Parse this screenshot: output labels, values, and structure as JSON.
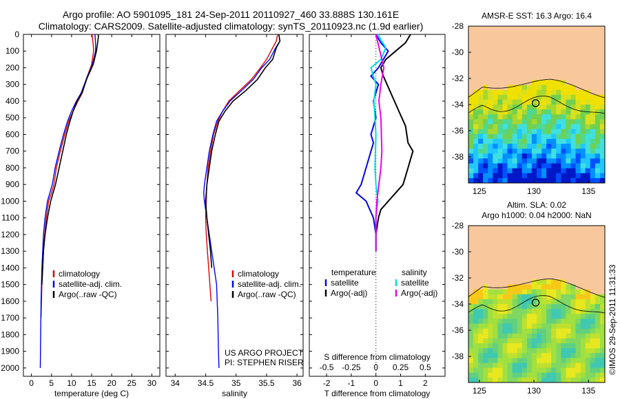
{
  "header": {
    "line1": "Argo profile: AO 5901095_181 24-Sep-2011 20110927_460 33.888S 130.161E",
    "line2": "Climatology: CARS2009. Satellite-adjusted climatology: synTS_20110923.nc (1.9d earlier)"
  },
  "colors": {
    "climatology": "#dd0000",
    "satellite": "#0000ee",
    "argo": "#000000",
    "salinity_satellite": "#00dddd",
    "salinity_argo": "#ee00ee",
    "land": "#f8c89c"
  },
  "depth_axis": {
    "min": 0,
    "max": 2050,
    "inverted": true,
    "ticks": [
      0,
      100,
      200,
      300,
      400,
      500,
      600,
      700,
      800,
      900,
      1000,
      1100,
      1200,
      1300,
      1400,
      1500,
      1600,
      1700,
      1800,
      1900,
      2000
    ]
  },
  "chart_data": [
    {
      "id": "temperature",
      "type": "line",
      "xlabel": "temperature (deg C)",
      "xlim": [
        -2,
        32
      ],
      "xticks": [
        0,
        5,
        10,
        15,
        20,
        25,
        30
      ],
      "series": [
        {
          "name": "climatology",
          "key": "climatology",
          "x": [
            15.1,
            15.2,
            15.4,
            15.5,
            15.0,
            13.8,
            12.7,
            11.6,
            10.4,
            9.3,
            8.3,
            7.2,
            6.2,
            5.6,
            5.0,
            4.3,
            3.7,
            3.3,
            3.0,
            2.8,
            2.6,
            2.5,
            2.4
          ],
          "depth": [
            0,
            20,
            60,
            100,
            180,
            260,
            350,
            400,
            460,
            520,
            600,
            700,
            800,
            900,
            950,
            1000,
            1100,
            1200,
            1300,
            1400,
            1500,
            1600,
            1700
          ]
        },
        {
          "name": "satellite-adj. clim.",
          "key": "satellite",
          "x": [
            15.8,
            15.9,
            16.0,
            16.0,
            15.2,
            13.8,
            12.4,
            11.2,
            10.0,
            9.0,
            8.0,
            6.9,
            5.9,
            5.2,
            4.6,
            4.0,
            3.4,
            3.0,
            2.8,
            2.6,
            2.5,
            2.4,
            2.35,
            2.3,
            2.2
          ],
          "depth": [
            0,
            20,
            60,
            100,
            180,
            260,
            350,
            400,
            460,
            520,
            600,
            700,
            800,
            900,
            950,
            1000,
            1100,
            1200,
            1300,
            1400,
            1500,
            1600,
            1700,
            1800,
            2000
          ]
        },
        {
          "name": "Argo(..raw -QC)",
          "key": "argo",
          "x": [
            16.6,
            16.7,
            16.5,
            16.2,
            15.4,
            13.9,
            12.6,
            11.4,
            10.4,
            9.6,
            8.7,
            7.8,
            6.9,
            6.0,
            4.8,
            4.0,
            3.4,
            3.0,
            2.8,
            2.6
          ],
          "depth": [
            0,
            10,
            50,
            100,
            180,
            260,
            350,
            400,
            460,
            520,
            600,
            700,
            800,
            900,
            1000,
            1100,
            1200,
            1300,
            1400,
            1500
          ]
        }
      ],
      "legend": [
        "climatology",
        "satellite-adj. clim.",
        "Argo(..raw -QC)"
      ],
      "legend_location": "lower center"
    },
    {
      "id": "salinity",
      "type": "line",
      "xlabel": "salinity",
      "xlim": [
        33.85,
        36.1
      ],
      "xticks": [
        34,
        34.5,
        35,
        35.5,
        36
      ],
      "series": [
        {
          "name": "climatology",
          "key": "climatology",
          "x": [
            35.68,
            35.66,
            35.6,
            35.5,
            35.4,
            35.25,
            35.05,
            34.88,
            34.78,
            34.7,
            34.63,
            34.58,
            34.54,
            34.52,
            34.51,
            34.5,
            34.51,
            34.53,
            34.55,
            34.57,
            34.59
          ],
          "depth": [
            0,
            40,
            80,
            150,
            200,
            270,
            340,
            400,
            460,
            520,
            600,
            700,
            800,
            900,
            1000,
            1100,
            1200,
            1300,
            1400,
            1500,
            1600
          ]
        },
        {
          "name": "satellite-adj. clim.",
          "key": "satellite",
          "x": [
            35.7,
            35.72,
            35.65,
            35.55,
            35.42,
            35.28,
            35.08,
            34.9,
            34.78,
            34.68,
            34.62,
            34.56,
            34.52,
            34.48,
            34.47,
            34.48,
            34.52,
            34.56,
            34.6,
            34.64,
            34.68,
            34.7,
            34.71,
            34.72
          ],
          "depth": [
            0,
            40,
            80,
            150,
            200,
            270,
            340,
            400,
            460,
            520,
            600,
            700,
            800,
            900,
            950,
            1000,
            1100,
            1200,
            1300,
            1400,
            1500,
            1700,
            1900,
            2000
          ]
        },
        {
          "name": "Argo(..raw -QC)",
          "key": "argo",
          "x": [
            35.7,
            35.72,
            35.66,
            35.6,
            35.48,
            35.35,
            35.15,
            34.95,
            34.82,
            34.72,
            34.66,
            34.6,
            34.56,
            34.52,
            34.5,
            34.52,
            34.55,
            34.58,
            34.6
          ],
          "depth": [
            0,
            40,
            80,
            150,
            200,
            270,
            340,
            400,
            460,
            520,
            600,
            700,
            800,
            900,
            1000,
            1100,
            1200,
            1300,
            1400
          ]
        }
      ],
      "legend": [
        "climatology",
        "satellite-adj. clim.",
        "Argo(..raw -QC)"
      ],
      "legend_location": "lower center",
      "annotation": [
        "US ARGO PROJECT",
        "PI: STEPHEN RISER"
      ]
    },
    {
      "id": "differences",
      "type": "line",
      "xlabel": "T difference from climatology",
      "xlabel_top": "S difference from climatology",
      "xlim_T": [
        -2.7,
        2.8
      ],
      "xticks_T": [
        -2,
        -1,
        0,
        1,
        2
      ],
      "xlim_S": [
        -0.675,
        0.7
      ],
      "xticks_S": [
        -0.5,
        -0.25,
        0,
        0.25,
        0.5
      ],
      "xticklabels_S": [
        "-0.5",
        "-0.25",
        "0",
        "0.25",
        "0.5"
      ],
      "series": [
        {
          "name": "temperature satellite",
          "key": "satellite",
          "axis": "T",
          "x": [
            0.0,
            0.2,
            0.5,
            0.3,
            0.1,
            -0.2,
            0.1,
            -0.1,
            0.0,
            -0.2,
            -0.1,
            -0.2,
            -0.4,
            -0.5,
            -0.6,
            -0.8,
            -0.4,
            -0.1,
            0.0,
            0.0
          ],
          "depth": [
            0,
            50,
            100,
            150,
            200,
            250,
            300,
            400,
            500,
            600,
            650,
            700,
            800,
            850,
            900,
            950,
            1000,
            1100,
            1200,
            1300
          ]
        },
        {
          "name": "temperature Argo(-adj)",
          "key": "argo",
          "axis": "T",
          "x": [
            1.4,
            1.2,
            0.8,
            0.4,
            0.2,
            0.3,
            0.6,
            0.9,
            1.2,
            1.3,
            1.5,
            1.3,
            1.1,
            0.8,
            0.5,
            0.2,
            0.1,
            0.0,
            0.0
          ],
          "depth": [
            0,
            50,
            100,
            150,
            200,
            250,
            350,
            450,
            550,
            650,
            700,
            800,
            900,
            950,
            1000,
            1050,
            1100,
            1200,
            1300
          ]
        },
        {
          "name": "salinity satellite",
          "key": "salinity_satellite",
          "axis": "S",
          "x": [
            0.02,
            0.1,
            0.05,
            -0.05,
            0.0,
            -0.02,
            0.0,
            -0.01,
            0.0,
            0.02,
            0.0,
            0.0,
            0.0
          ],
          "depth": [
            0,
            80,
            150,
            200,
            300,
            400,
            600,
            800,
            900,
            1000,
            1100,
            1200,
            1300
          ]
        },
        {
          "name": "salinity Argo(-adj)",
          "key": "salinity_argo",
          "axis": "S",
          "x": [
            0.0,
            0.04,
            0.08,
            0.05,
            0.03,
            0.05,
            0.06,
            0.05,
            0.03,
            0.01,
            0.0,
            0.0
          ],
          "depth": [
            0,
            100,
            200,
            300,
            400,
            500,
            700,
            800,
            900,
            1000,
            1100,
            1300
          ]
        }
      ],
      "legend_left": {
        "title": "temperature",
        "items": [
          "satellite",
          "Argo(-adj)"
        ]
      },
      "legend_right": {
        "title": "salinity",
        "items": [
          "satellite",
          "Argo(-adj)"
        ]
      }
    },
    {
      "id": "map_sst",
      "type": "heatmap",
      "title": "AMSR-E SST: 16.3 Argo: 16.4",
      "xlim": [
        124,
        136.5
      ],
      "ylim": [
        -40,
        -28
      ],
      "xticks": [
        125,
        130,
        135
      ],
      "yticks": [
        -28,
        -30,
        -32,
        -34,
        -36,
        -38
      ],
      "marker": {
        "lon": 130.161,
        "lat": -33.888
      }
    },
    {
      "id": "map_sla",
      "type": "heatmap",
      "title_line1": "Altim. SLA: 0.02",
      "title_line2": "Argo h1000: 0.04 h2000: NaN",
      "xlim": [
        124,
        136.5
      ],
      "ylim": [
        -40,
        -28
      ],
      "xticks": [
        125,
        130,
        135
      ],
      "yticks": [
        -28,
        -30,
        -32,
        -34,
        -36,
        -38
      ],
      "marker": {
        "lon": 130.161,
        "lat": -33.888
      }
    }
  ],
  "credit": "©IMOS 29-Sep-2011 11:31:33"
}
